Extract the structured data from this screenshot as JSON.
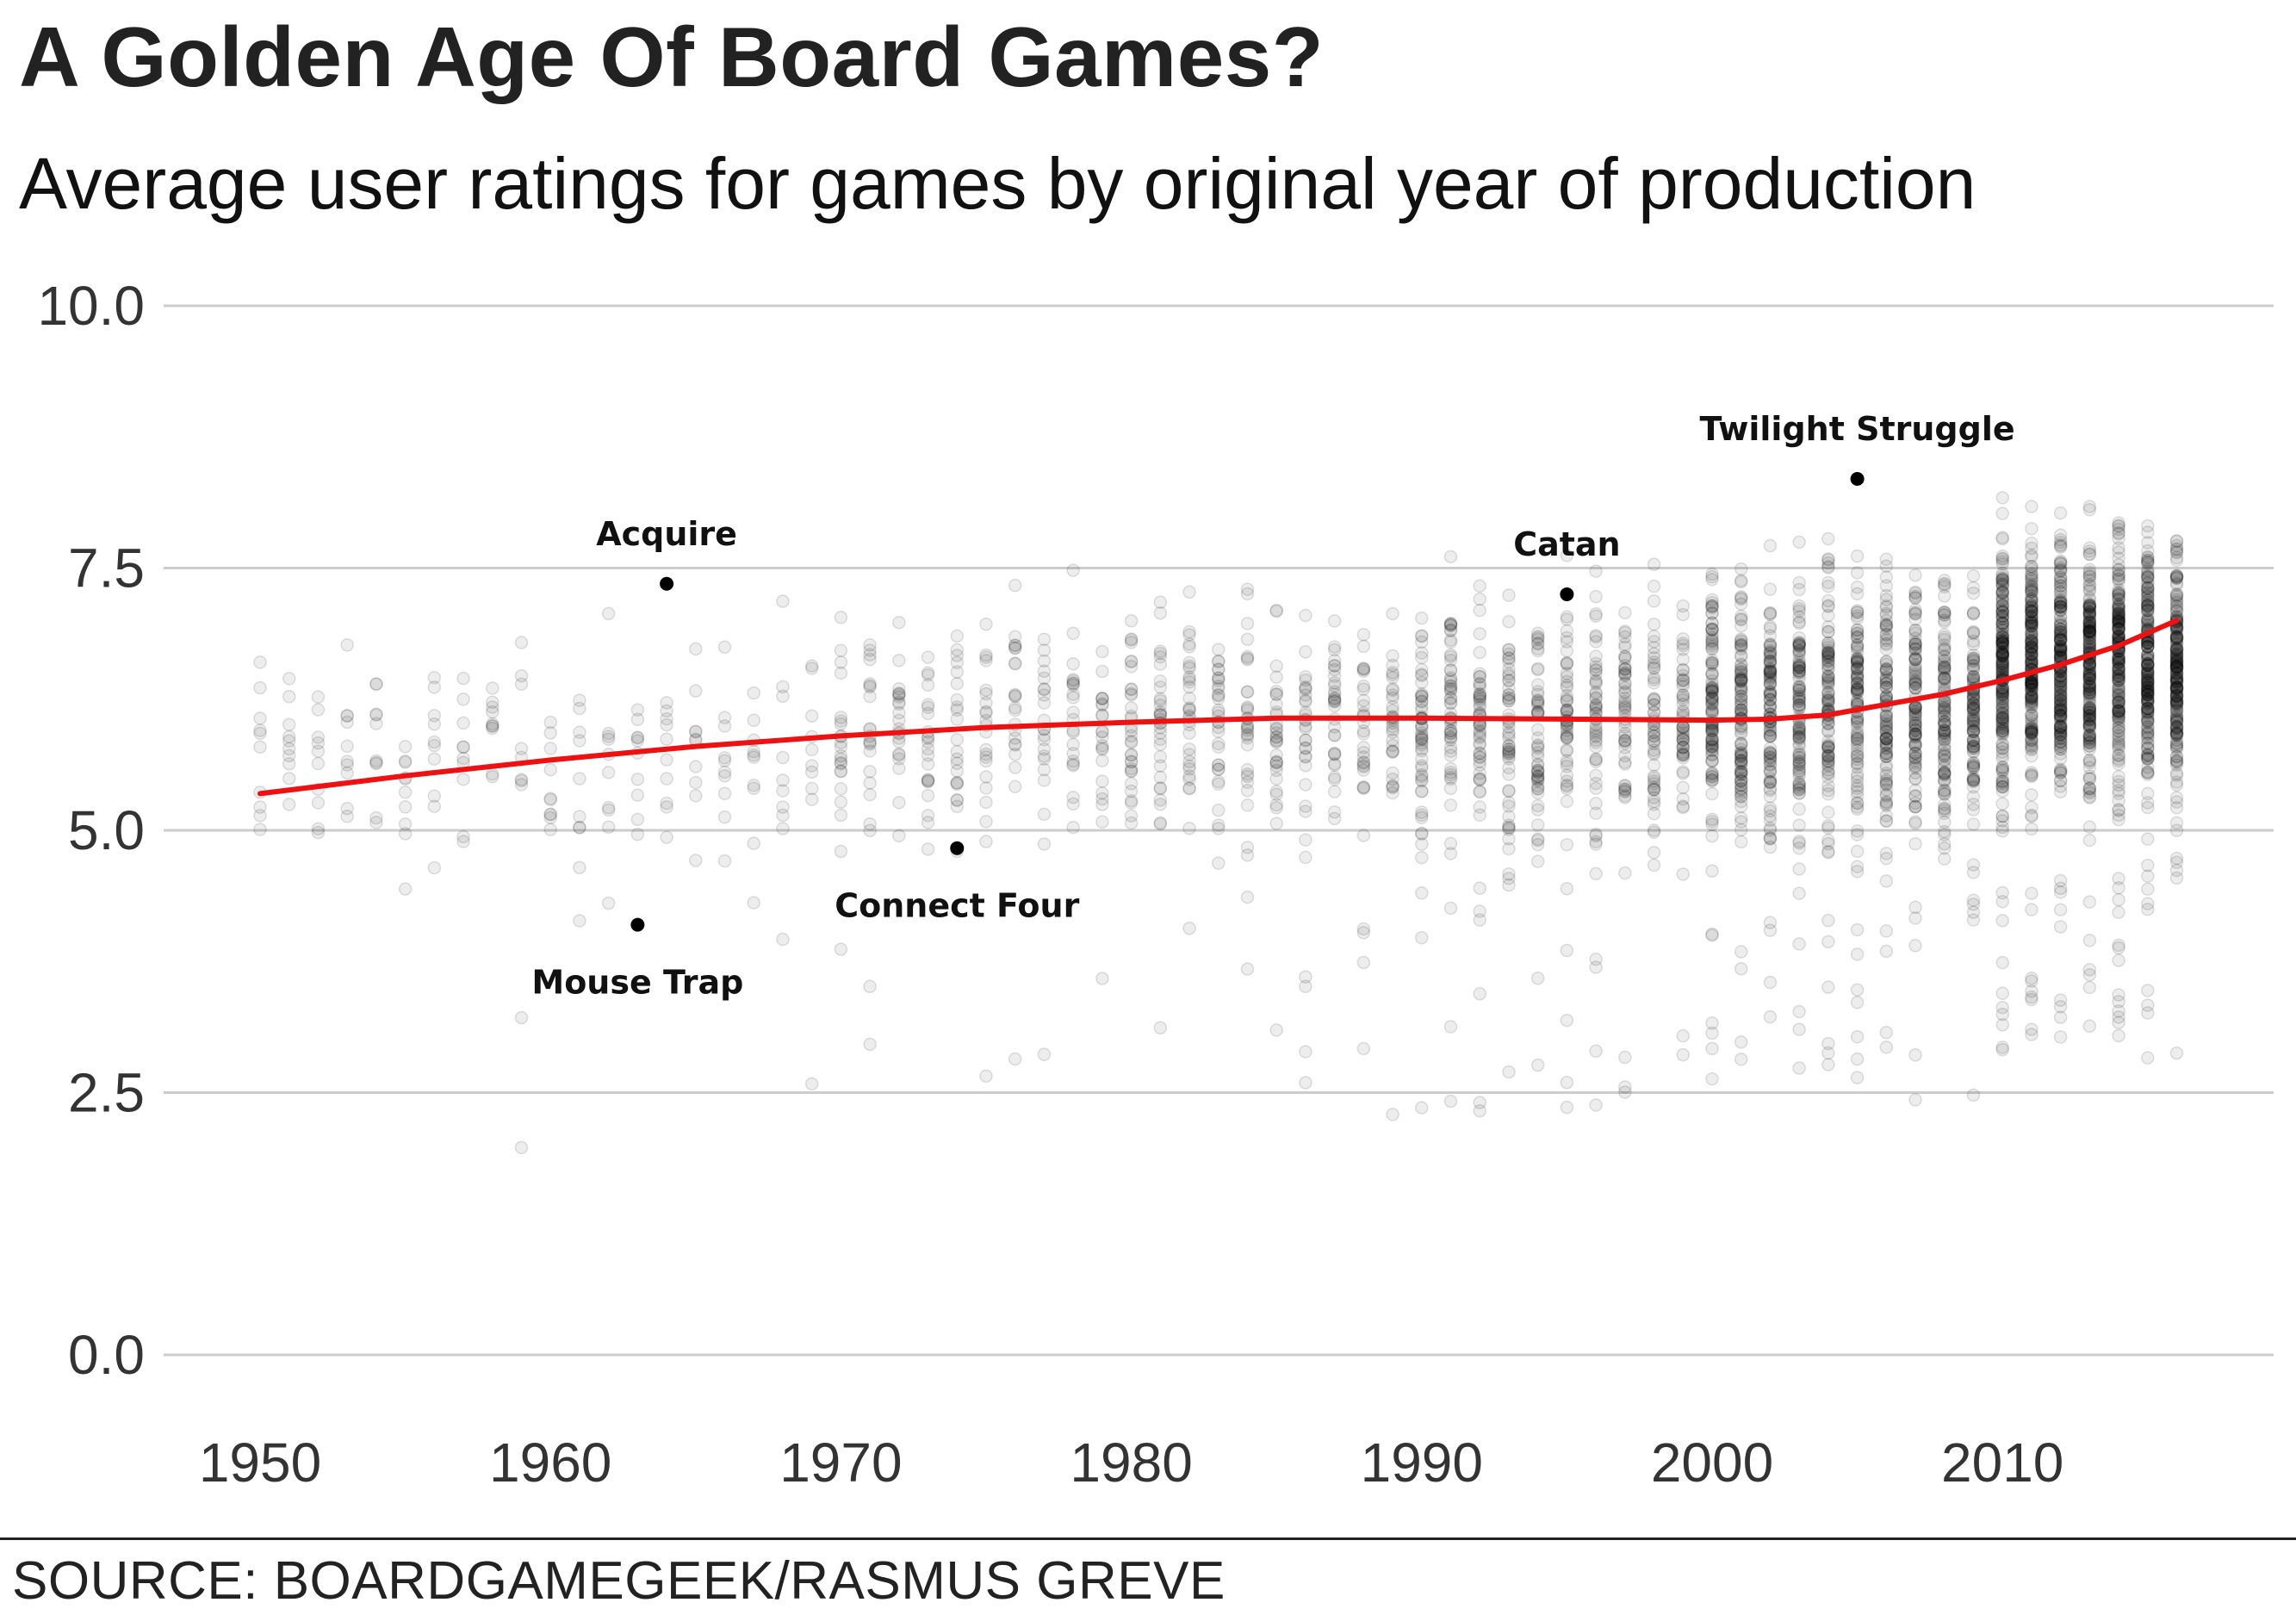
{
  "title": "A Golden Age Of Board Games?",
  "subtitle": "Average user ratings for games by original year of production",
  "source": "SOURCE: BOARDGAMEGEEK/RASMUS GREVE",
  "colors": {
    "trend": "#ee1111",
    "grid": "#cccccc",
    "points": "#000000",
    "highlight": "#000000"
  },
  "chart_data": {
    "type": "scatter",
    "title": "A Golden Age Of Board Games?",
    "subtitle": "Average user ratings for games by original year of production",
    "xlabel": "",
    "ylabel": "",
    "xlim": [
      1949,
      2016.5
    ],
    "ylim": [
      0,
      10
    ],
    "x_ticks": [
      1950,
      1960,
      1970,
      1980,
      1990,
      2000,
      2010
    ],
    "y_ticks": [
      0.0,
      2.5,
      5.0,
      7.5,
      10.0
    ],
    "y_tick_labels": [
      "0.0",
      "2.5",
      "5.0",
      "7.5",
      "10.0"
    ],
    "grid": "horizontal",
    "point_style": "semi-transparent gray dots, one per game",
    "point_density": [
      {
        "range": [
          1950,
          1969
        ],
        "points_per_year": 10,
        "center": 5.7,
        "spread": 0.7
      },
      {
        "range": [
          1970,
          1979
        ],
        "points_per_year": 22,
        "center": 5.95,
        "spread": 0.75
      },
      {
        "range": [
          1980,
          1989
        ],
        "points_per_year": 32,
        "center": 6.05,
        "spread": 0.75
      },
      {
        "range": [
          1990,
          1999
        ],
        "points_per_year": 55,
        "center": 6.05,
        "spread": 0.8
      },
      {
        "range": [
          2000,
          2009
        ],
        "points_per_year": 110,
        "center": 6.2,
        "spread": 0.85
      },
      {
        "range": [
          2010,
          2016
        ],
        "points_per_year": 210,
        "center": 6.6,
        "spread": 0.8
      }
    ],
    "trend": {
      "name": "",
      "x": [
        1950,
        1955,
        1960,
        1965,
        1970,
        1975,
        1980,
        1985,
        1990,
        1995,
        2000,
        2002,
        2004,
        2006,
        2008,
        2010,
        2012,
        2014,
        2016
      ],
      "y": [
        5.35,
        5.52,
        5.67,
        5.8,
        5.9,
        5.98,
        6.03,
        6.07,
        6.07,
        6.06,
        6.05,
        6.06,
        6.1,
        6.2,
        6.3,
        6.43,
        6.58,
        6.76,
        7.0
      ]
    },
    "highlighted": [
      {
        "name": "Acquire",
        "x": 1964,
        "y": 7.35,
        "label_pos": "above"
      },
      {
        "name": "Mouse Trap",
        "x": 1963,
        "y": 4.1,
        "label_pos": "below"
      },
      {
        "name": "Connect Four",
        "x": 1974,
        "y": 4.83,
        "label_pos": "below"
      },
      {
        "name": "Catan",
        "x": 1995,
        "y": 7.25,
        "label_pos": "above"
      },
      {
        "name": "Twilight Struggle",
        "x": 2005,
        "y": 8.35,
        "label_pos": "above"
      }
    ]
  }
}
